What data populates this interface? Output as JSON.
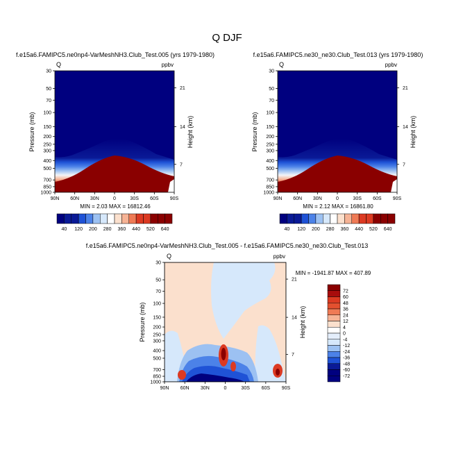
{
  "page_title": "Q DJF",
  "colors": {
    "dark_navy": "#00007f",
    "navy": "#0a1a96",
    "blue": "#1f52d6",
    "mid_blue": "#4c82e8",
    "light_blue": "#9cc1f2",
    "pale_blue": "#d6e8fb",
    "pale_peach": "#fbe0cd",
    "peach": "#f6b395",
    "orange": "#ef7a55",
    "red": "#dc3a22",
    "dark_red": "#8a0000"
  },
  "chart_data": [
    {
      "type": "heatmap",
      "panel": "test",
      "title": "f.e15a6.FAMIPC5.ne0np4-VarMeshNH3.Club_Test.005 (yrs 1979-1980)",
      "left_label": "Q",
      "right_label": "ppbv",
      "ylabel": "Pressure (mb)",
      "y2label": "Height (km)",
      "x_ticks": [
        "90N",
        "60N",
        "30N",
        "0",
        "30S",
        "60S",
        "90S"
      ],
      "y_ticks": [
        "30",
        "50",
        "70",
        "100",
        "150",
        "200",
        "250",
        "300",
        "400",
        "500",
        "700",
        "850",
        "1000"
      ],
      "y2_ticks": [
        "21",
        "14",
        "7"
      ],
      "stats": "MIN =  2.03  MAX = 16812.46",
      "levels": [
        40,
        80,
        120,
        160,
        200,
        240,
        280,
        320,
        360,
        400,
        440,
        480,
        520,
        560,
        600,
        640
      ],
      "colorbar_labels": [
        "40",
        "120",
        "200",
        "280",
        "360",
        "440",
        "520",
        "640"
      ],
      "boundary_pressure_mb": [
        [
          90,
          470
        ],
        [
          75,
          430
        ],
        [
          60,
          390
        ],
        [
          45,
          330
        ],
        [
          30,
          270
        ],
        [
          20,
          230
        ],
        [
          10,
          210
        ],
        [
          0,
          200
        ],
        [
          -10,
          205
        ],
        [
          -20,
          220
        ],
        [
          -30,
          250
        ],
        [
          -45,
          310
        ],
        [
          -60,
          360
        ],
        [
          -75,
          410
        ],
        [
          -90,
          460
        ]
      ]
    },
    {
      "type": "heatmap",
      "panel": "control",
      "title": "f.e15a6.FAMIPC5.ne30_ne30.Club_Test.013 (yrs 1979-1980)",
      "left_label": "Q",
      "right_label": "ppbv",
      "ylabel": "Pressure (mb)",
      "y2label": "Height (km)",
      "x_ticks": [
        "90N",
        "60N",
        "30N",
        "0",
        "30S",
        "60S",
        "90S"
      ],
      "y_ticks": [
        "30",
        "50",
        "70",
        "100",
        "150",
        "200",
        "250",
        "300",
        "400",
        "500",
        "700",
        "850",
        "1000"
      ],
      "y2_ticks": [
        "21",
        "14",
        "7"
      ],
      "stats": "MIN =  2.12  MAX = 16861.80",
      "levels": [
        40,
        80,
        120,
        160,
        200,
        240,
        280,
        320,
        360,
        400,
        440,
        480,
        520,
        560,
        600,
        640
      ],
      "colorbar_labels": [
        "40",
        "120",
        "200",
        "280",
        "360",
        "440",
        "520",
        "640"
      ],
      "boundary_pressure_mb": [
        [
          90,
          470
        ],
        [
          75,
          430
        ],
        [
          60,
          390
        ],
        [
          45,
          330
        ],
        [
          30,
          270
        ],
        [
          20,
          230
        ],
        [
          10,
          210
        ],
        [
          0,
          200
        ],
        [
          -10,
          205
        ],
        [
          -20,
          220
        ],
        [
          -30,
          250
        ],
        [
          -45,
          310
        ],
        [
          -60,
          360
        ],
        [
          -75,
          410
        ],
        [
          -90,
          460
        ]
      ]
    },
    {
      "type": "heatmap",
      "panel": "difference",
      "title": "f.e15a6.FAMIPC5.ne0np4-VarMeshNH3.Club_Test.005 - f.e15a6.FAMIPC5.ne30_ne30.Club_Test.013",
      "left_label": "Q",
      "right_label": "ppbv",
      "ylabel": "Pressure (mb)",
      "y2label": "Height (km)",
      "x_ticks": [
        "90N",
        "60N",
        "30N",
        "0",
        "30S",
        "60S",
        "90S"
      ],
      "y_ticks": [
        "30",
        "50",
        "70",
        "100",
        "150",
        "200",
        "250",
        "300",
        "400",
        "500",
        "700",
        "850",
        "1000"
      ],
      "y2_ticks": [
        "21",
        "14",
        "7"
      ],
      "stats": "MIN = -1941.87  MAX = 407.89",
      "levels": [
        -72,
        -60,
        -48,
        -36,
        -24,
        -12,
        -4,
        0,
        4,
        12,
        24,
        36,
        48,
        60,
        72
      ],
      "colorbar_labels": [
        "72",
        "60",
        "48",
        "36",
        "24",
        "12",
        "4",
        "0",
        "-4",
        "-12",
        "-24",
        "-36",
        "-48",
        "-60",
        "-72"
      ],
      "range": [
        -1941.87,
        407.89
      ]
    }
  ]
}
